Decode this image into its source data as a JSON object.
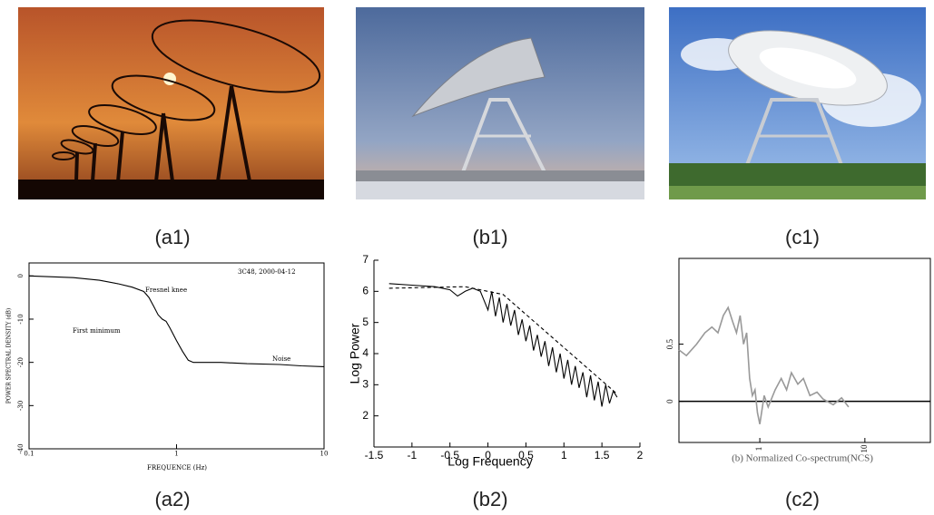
{
  "captions": {
    "a1": "(a1)",
    "b1": "(b1)",
    "c1": "(c1)",
    "a2": "(a2)",
    "b2": "(b2)",
    "c2": "(c2)"
  },
  "chart_data": [
    {
      "type": "line",
      "annotations": [
        "3C48, 2000-04-12",
        "Fresnel knee",
        "First minimum",
        "Noise"
      ],
      "x_label": "FREQUENCE (Hz)",
      "y_label": "POWER SPECTRAL DENSITY (dB)",
      "x_scale": "log",
      "xlim": [
        0.1,
        10
      ],
      "xticks": [
        0.1,
        1,
        10
      ],
      "ylim": [
        -40,
        3
      ],
      "yticks": [
        0,
        -10,
        -20,
        -30,
        -40
      ],
      "series": [
        {
          "color": "#000000",
          "style": "solid",
          "x": [
            0.1,
            0.2,
            0.3,
            0.4,
            0.5,
            0.6,
            0.65,
            0.7,
            0.75,
            0.8,
            0.85,
            0.9,
            1.0,
            1.1,
            1.2,
            1.3,
            2,
            3,
            5,
            7,
            10
          ],
          "values": [
            0,
            -0.4,
            -1,
            -1.8,
            -2.6,
            -3.6,
            -5,
            -7,
            -9,
            -10,
            -10.5,
            -12,
            -15,
            -17.5,
            -19.5,
            -20,
            -20,
            -20.3,
            -20.5,
            -20.8,
            -21
          ]
        }
      ]
    },
    {
      "type": "line",
      "x_label": "Log Frequency",
      "y_label": "Log Power",
      "xlim": [
        -1.5,
        2
      ],
      "xticks": [
        -1.5,
        -1,
        -0.5,
        0,
        0.5,
        1,
        1.5,
        2
      ],
      "ylim": [
        1,
        7
      ],
      "yticks": [
        2,
        3,
        4,
        5,
        6,
        7
      ],
      "series": [
        {
          "color": "#000000",
          "style": "solid",
          "x": [
            -1.3,
            -1.0,
            -0.7,
            -0.5,
            -0.4,
            -0.3,
            -0.2,
            -0.1,
            0,
            0.05,
            0.1,
            0.15,
            0.2,
            0.25,
            0.3,
            0.35,
            0.4,
            0.45,
            0.5,
            0.55,
            0.6,
            0.65,
            0.7,
            0.75,
            0.8,
            0.85,
            0.9,
            0.95,
            1.0,
            1.05,
            1.1,
            1.15,
            1.2,
            1.25,
            1.3,
            1.35,
            1.4,
            1.45,
            1.5,
            1.55,
            1.6,
            1.65,
            1.7
          ],
          "values": [
            6.25,
            6.2,
            6.15,
            6.05,
            5.85,
            6.0,
            6.1,
            6.0,
            5.4,
            6.0,
            5.2,
            5.8,
            5.0,
            5.6,
            4.9,
            5.4,
            4.6,
            5.1,
            4.4,
            4.9,
            4.1,
            4.6,
            3.9,
            4.4,
            3.6,
            4.2,
            3.4,
            4.0,
            3.2,
            3.8,
            3.0,
            3.6,
            2.9,
            3.4,
            2.6,
            3.3,
            2.5,
            3.1,
            2.3,
            3.0,
            2.4,
            2.8,
            2.6
          ]
        },
        {
          "color": "#000000",
          "style": "dashed",
          "x": [
            -1.3,
            -0.3,
            0.2,
            1.7
          ],
          "values": [
            6.1,
            6.15,
            5.9,
            2.7
          ]
        }
      ]
    },
    {
      "type": "line",
      "x_label": "(b) Normalized Co-spectrum(NCS)",
      "x_scale": "log",
      "xlim": [
        0.17,
        42
      ],
      "xticks": [
        1,
        10
      ],
      "ylim": [
        -0.36,
        1.25
      ],
      "yticks": [
        0,
        0.5
      ],
      "series": [
        {
          "color": "#999999",
          "style": "solid",
          "x": [
            0.17,
            0.2,
            0.25,
            0.3,
            0.35,
            0.4,
            0.45,
            0.5,
            0.55,
            0.6,
            0.65,
            0.7,
            0.75,
            0.8,
            0.85,
            0.9,
            0.95,
            1.0,
            1.1,
            1.2,
            1.4,
            1.6,
            1.8,
            2,
            2.3,
            2.6,
            3,
            3.5,
            4,
            5,
            6,
            7
          ],
          "values": [
            0.45,
            0.4,
            0.5,
            0.6,
            0.65,
            0.6,
            0.75,
            0.82,
            0.7,
            0.6,
            0.75,
            0.5,
            0.6,
            0.2,
            0.05,
            0.1,
            -0.1,
            -0.2,
            0.05,
            -0.05,
            0.1,
            0.2,
            0.1,
            0.25,
            0.15,
            0.2,
            0.05,
            0.08,
            0.02,
            -0.03,
            0.03,
            -0.05
          ]
        }
      ]
    }
  ]
}
